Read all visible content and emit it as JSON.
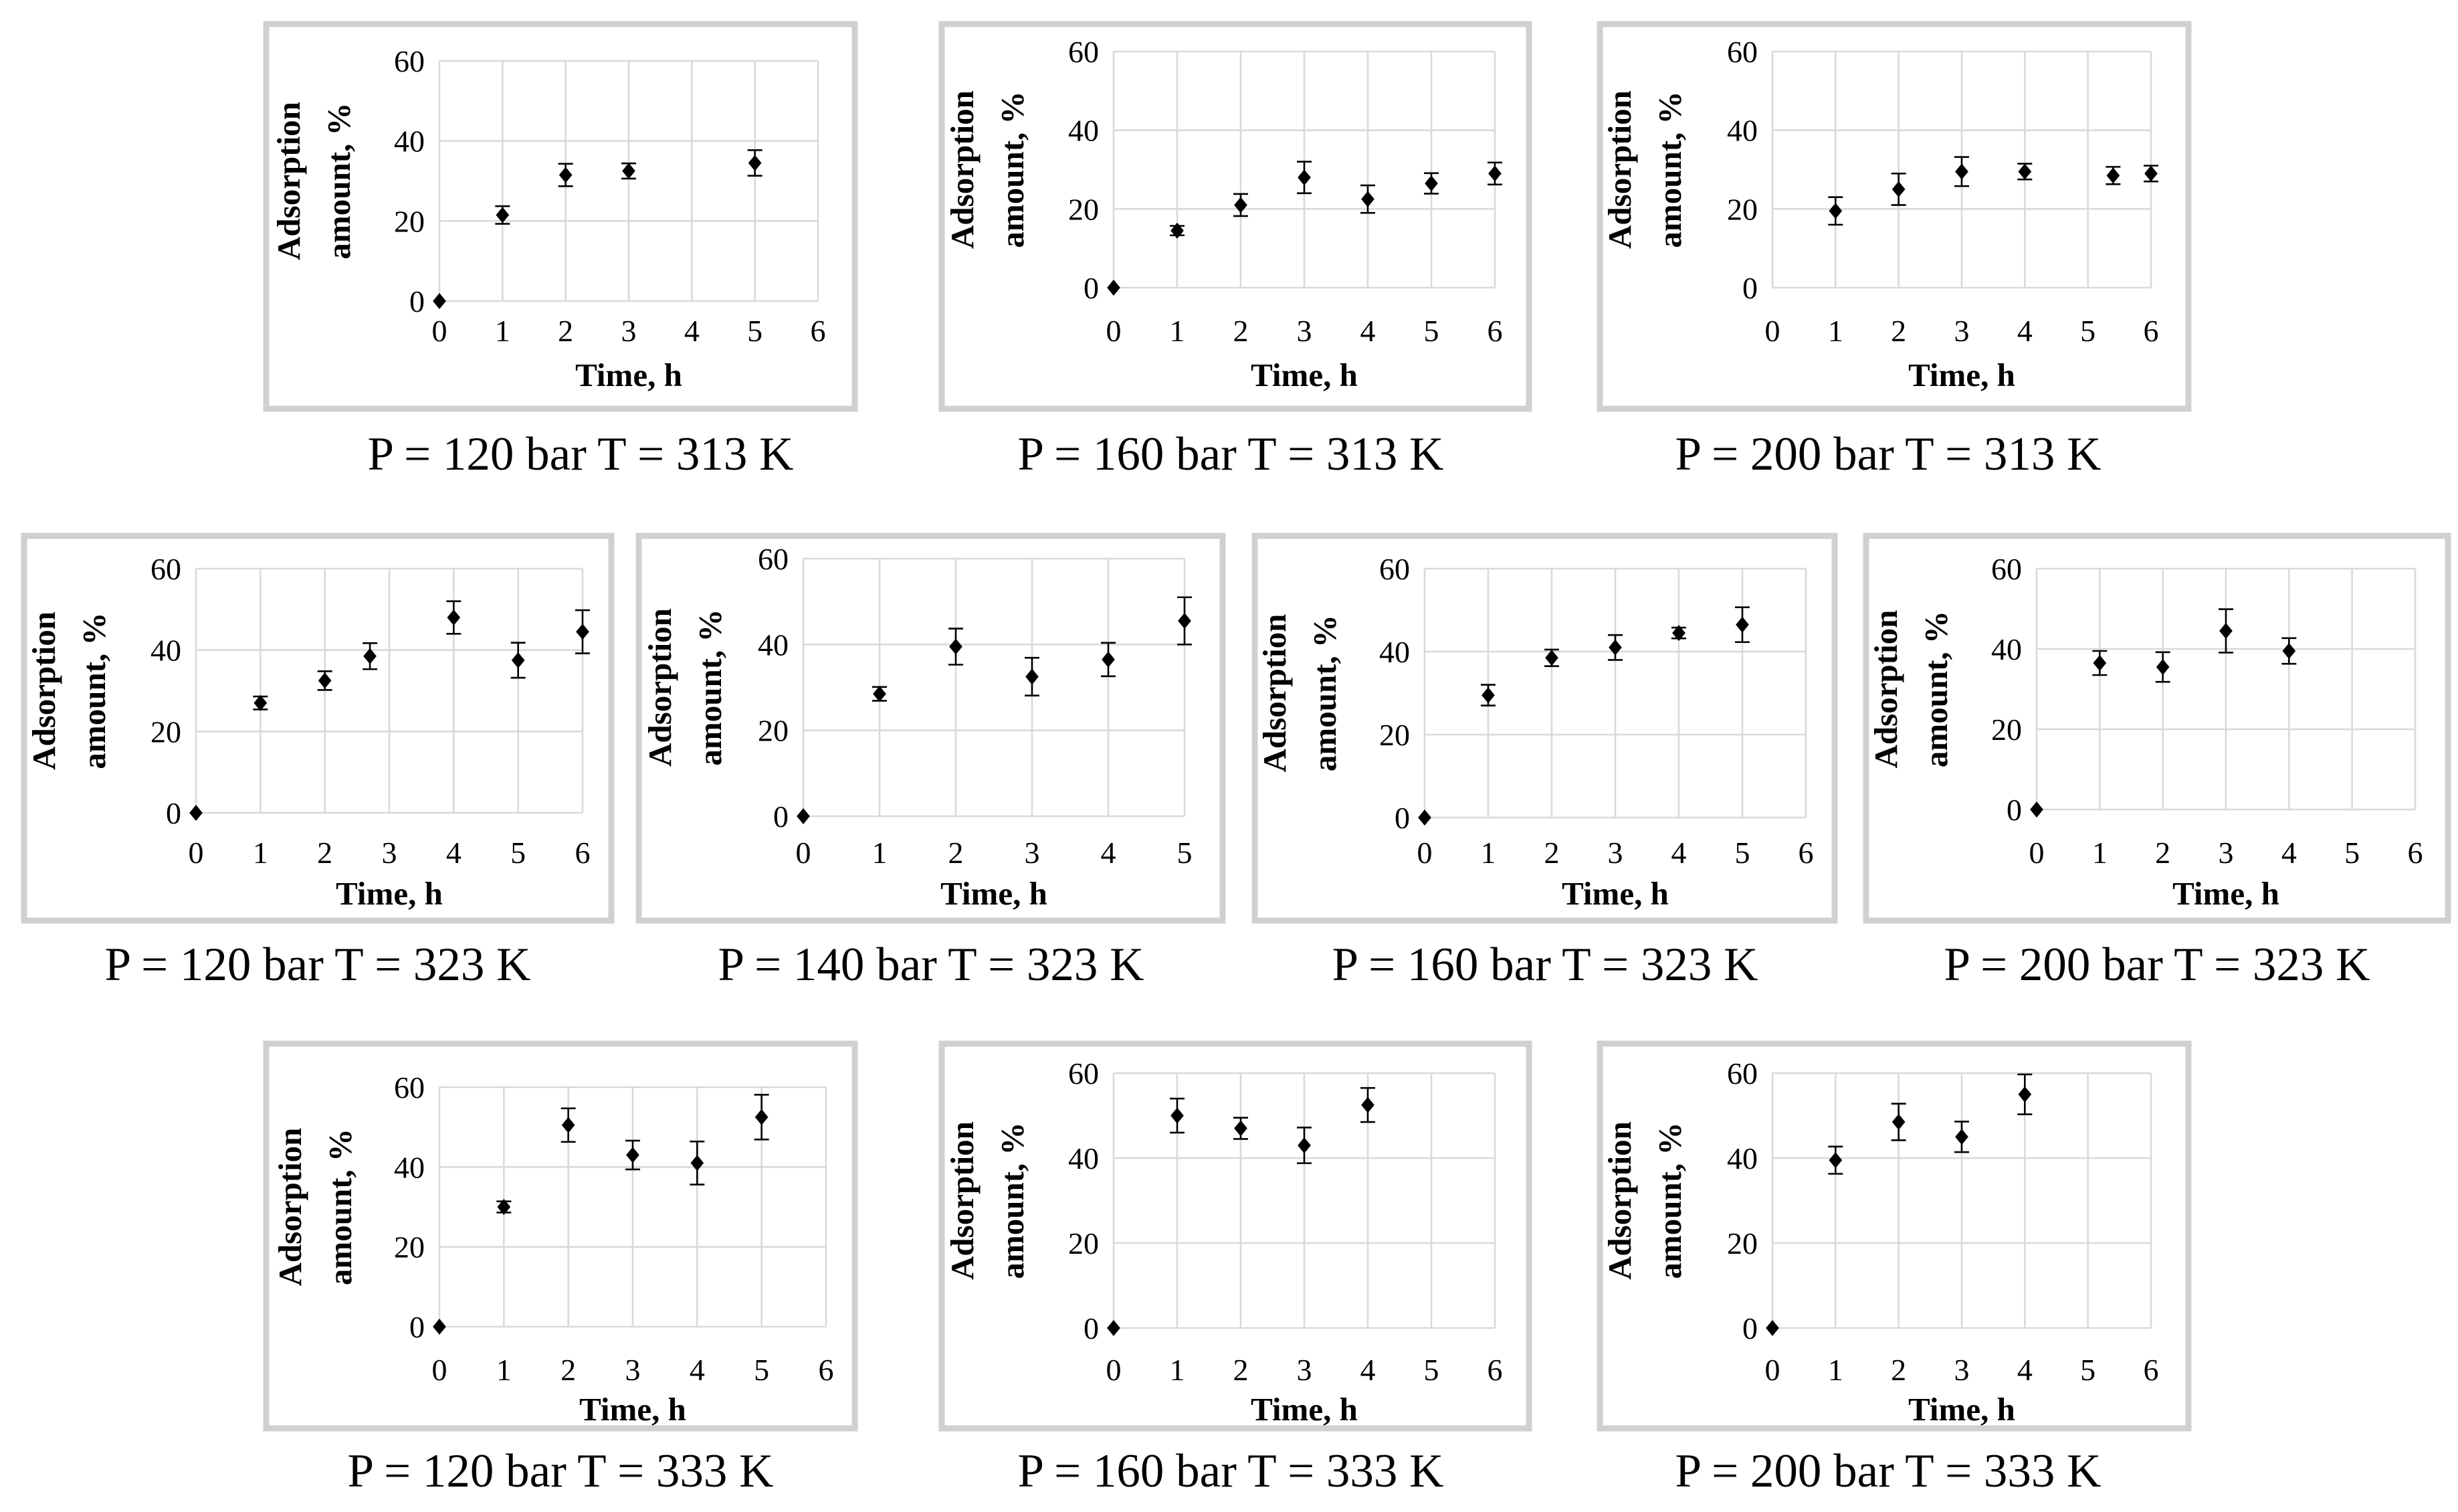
{
  "colors": {
    "marker": "#000000",
    "gridline": "#d9d9d9",
    "frame": "#d0d0d0",
    "background": "#ffffff"
  },
  "chart_data": [
    {
      "type": "scatter",
      "title": "",
      "caption": "P = 120 bar T = 313 K",
      "xlabel": "Time, h",
      "ylabel": [
        "Adsorption",
        "amount, %"
      ],
      "xlim": [
        0,
        6
      ],
      "ylim": [
        0,
        60
      ],
      "xticks": [
        0,
        1,
        2,
        3,
        4,
        5,
        6
      ],
      "yticks": [
        0,
        20,
        40,
        60
      ],
      "grid": true,
      "series": [
        {
          "name": "Adsorption amount",
          "x": [
            0,
            1,
            2,
            3,
            5
          ],
          "y": [
            0,
            21.5,
            31.5,
            32.5,
            34.5
          ],
          "err": [
            0,
            2.2,
            2.8,
            1.9,
            3.2
          ]
        }
      ]
    },
    {
      "type": "scatter",
      "title": "",
      "caption": "P = 160 bar T = 313 K",
      "xlabel": "Time, h",
      "ylabel": [
        "Adsorption",
        "amount, %"
      ],
      "xlim": [
        0,
        6
      ],
      "ylim": [
        0,
        60
      ],
      "xticks": [
        0,
        1,
        2,
        3,
        4,
        5,
        6
      ],
      "yticks": [
        0,
        20,
        40,
        60
      ],
      "grid": true,
      "series": [
        {
          "name": "Adsorption amount",
          "x": [
            0,
            1,
            2,
            3,
            4,
            5,
            6
          ],
          "y": [
            0,
            14.5,
            21,
            28,
            22.5,
            26.5,
            29
          ],
          "err": [
            0,
            1.2,
            2.8,
            4,
            3.5,
            2.6,
            2.8
          ]
        }
      ]
    },
    {
      "type": "scatter",
      "title": "",
      "caption": "P = 200 bar T = 313 K",
      "xlabel": "Time, h",
      "ylabel": [
        "Adsorption",
        "amount, %"
      ],
      "xlim": [
        0,
        6
      ],
      "ylim": [
        0,
        60
      ],
      "xticks": [
        0,
        1,
        2,
        3,
        4,
        5,
        6
      ],
      "yticks": [
        0,
        20,
        40,
        60
      ],
      "grid": true,
      "series": [
        {
          "name": "Adsorption amount",
          "x": [
            1,
            2,
            3,
            4,
            5.4,
            6
          ],
          "y": [
            19.5,
            25,
            29.5,
            29.5,
            28.5,
            29
          ],
          "err": [
            3.5,
            4,
            3.7,
            2,
            2.2,
            2
          ]
        }
      ]
    },
    {
      "type": "scatter",
      "title": "",
      "caption": "P = 120 bar T = 323 K",
      "xlabel": "Time, h",
      "ylabel": [
        "Adsorption",
        "amount, %"
      ],
      "xlim": [
        0,
        6
      ],
      "ylim": [
        0,
        60
      ],
      "xticks": [
        0,
        1,
        2,
        3,
        4,
        5,
        6
      ],
      "yticks": [
        0,
        20,
        40,
        60
      ],
      "grid": true,
      "series": [
        {
          "name": "Adsorption amount",
          "x": [
            0,
            1,
            2,
            2.7,
            4,
            5,
            6
          ],
          "y": [
            0,
            27,
            32.5,
            38.5,
            48,
            37.5,
            44.5
          ],
          "err": [
            0,
            1.6,
            2.3,
            3.2,
            4,
            4.3,
            5.3
          ]
        }
      ]
    },
    {
      "type": "scatter",
      "title": "",
      "caption": "P = 140 bar T = 323 K",
      "xlabel": "Time, h",
      "ylabel": [
        "Adsorption",
        "amount, %"
      ],
      "xlim": [
        0,
        5
      ],
      "ylim": [
        0,
        60
      ],
      "xticks": [
        0,
        1,
        2,
        3,
        4,
        5
      ],
      "yticks": [
        0,
        20,
        40,
        60
      ],
      "grid": true,
      "series": [
        {
          "name": "Adsorption amount",
          "x": [
            0,
            1,
            2,
            3,
            4,
            5
          ],
          "y": [
            0,
            28.5,
            39.5,
            32.5,
            36.5,
            45.5
          ],
          "err": [
            0,
            1.6,
            4.2,
            4.4,
            3.9,
            5.5
          ]
        }
      ]
    },
    {
      "type": "scatter",
      "title": "",
      "caption": "P = 160 bar T = 323 K",
      "xlabel": "Time, h",
      "ylabel": [
        "Adsorption",
        "amount, %"
      ],
      "xlim": [
        0,
        6
      ],
      "ylim": [
        0,
        60
      ],
      "xticks": [
        0,
        1,
        2,
        3,
        4,
        5,
        6
      ],
      "yticks": [
        0,
        20,
        40,
        60
      ],
      "grid": true,
      "series": [
        {
          "name": "Adsorption amount",
          "x": [
            0,
            1,
            2,
            3,
            4,
            5
          ],
          "y": [
            0,
            29.5,
            38.5,
            41,
            44.5,
            46.5
          ],
          "err": [
            0,
            2.5,
            2,
            3,
            1.3,
            4.2
          ]
        }
      ]
    },
    {
      "type": "scatter",
      "title": "",
      "caption": "P = 200 bar T = 323 K",
      "xlabel": "Time, h",
      "ylabel": [
        "Adsorption",
        "amount, %"
      ],
      "xlim": [
        0,
        6
      ],
      "ylim": [
        0,
        60
      ],
      "xticks": [
        0,
        1,
        2,
        3,
        4,
        5,
        6
      ],
      "yticks": [
        0,
        20,
        40,
        60
      ],
      "grid": true,
      "series": [
        {
          "name": "Adsorption amount",
          "x": [
            0,
            1,
            2,
            3,
            4
          ],
          "y": [
            0,
            36.5,
            35.5,
            44.5,
            39.5
          ],
          "err": [
            0,
            3,
            3.7,
            5.4,
            3.2
          ]
        }
      ]
    },
    {
      "type": "scatter",
      "title": "",
      "caption": "P = 120 bar T = 333 K",
      "xlabel": "Time, h",
      "ylabel": [
        "Adsorption",
        "amount, %"
      ],
      "xlim": [
        0,
        6
      ],
      "ylim": [
        0,
        60
      ],
      "xticks": [
        0,
        1,
        2,
        3,
        4,
        5,
        6
      ],
      "yticks": [
        0,
        20,
        40,
        60
      ],
      "grid": true,
      "series": [
        {
          "name": "Adsorption amount",
          "x": [
            0,
            1,
            2,
            3,
            4,
            5
          ],
          "y": [
            0,
            30,
            50.5,
            43,
            41,
            52.5
          ],
          "err": [
            0,
            1.4,
            4.2,
            3.6,
            5.4,
            5.6
          ]
        }
      ]
    },
    {
      "type": "scatter",
      "title": "",
      "caption": "P = 160 bar T = 333 K",
      "xlabel": "Time, h",
      "ylabel": [
        "Adsorption",
        "amount, %"
      ],
      "xlim": [
        0,
        6
      ],
      "ylim": [
        0,
        60
      ],
      "xticks": [
        0,
        1,
        2,
        3,
        4,
        5,
        6
      ],
      "yticks": [
        0,
        20,
        40,
        60
      ],
      "grid": true,
      "series": [
        {
          "name": "Adsorption amount",
          "x": [
            0,
            1,
            2,
            3,
            4
          ],
          "y": [
            0,
            50,
            47,
            43,
            52.5
          ],
          "err": [
            0,
            4,
            2.5,
            4.2,
            4
          ]
        }
      ]
    },
    {
      "type": "scatter",
      "title": "",
      "caption": "P = 200 bar T = 333 K",
      "xlabel": "Time, h",
      "ylabel": [
        "Adsorption",
        "amount, %"
      ],
      "xlim": [
        0,
        6
      ],
      "ylim": [
        0,
        60
      ],
      "xticks": [
        0,
        1,
        2,
        3,
        4,
        5,
        6
      ],
      "yticks": [
        0,
        20,
        40,
        60
      ],
      "grid": true,
      "series": [
        {
          "name": "Adsorption amount",
          "x": [
            0,
            1,
            2,
            3,
            4
          ],
          "y": [
            0,
            39.5,
            48.5,
            45,
            55
          ],
          "err": [
            0,
            3.2,
            4.3,
            3.6,
            4.7
          ]
        }
      ]
    }
  ]
}
